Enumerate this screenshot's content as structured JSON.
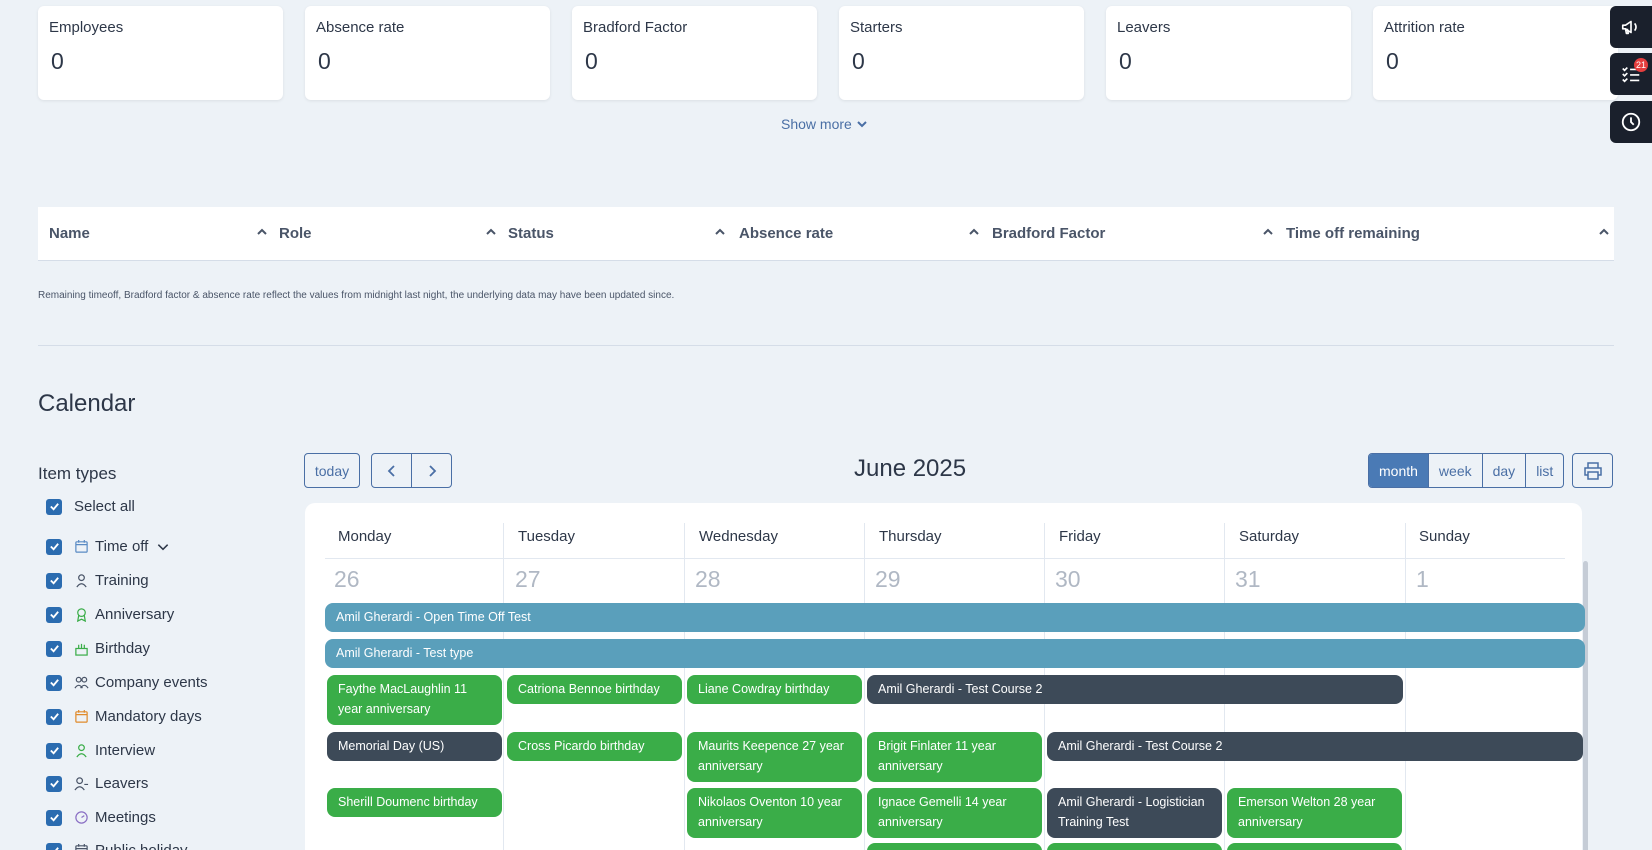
{
  "stats": [
    {
      "label": "Employees",
      "value": "0"
    },
    {
      "label": "Absence rate",
      "value": "0"
    },
    {
      "label": "Bradford Factor",
      "value": "0"
    },
    {
      "label": "Starters",
      "value": "0"
    },
    {
      "label": "Leavers",
      "value": "0"
    },
    {
      "label": "Attrition rate",
      "value": "0"
    }
  ],
  "show_more": "Show more",
  "side_panel": {
    "tasks_badge": "21",
    "icons": [
      "megaphone-icon",
      "task-list-icon",
      "clock-icon"
    ]
  },
  "table": {
    "columns": [
      "Name",
      "Role",
      "Status",
      "Absence rate",
      "Bradford Factor",
      "Time off remaining"
    ]
  },
  "note": "Remaining timeoff, Bradford factor & absence rate reflect the values from midnight last night, the underlying data may have been updated since.",
  "calendar": {
    "title": "Calendar",
    "month_label": "June 2025",
    "today_label": "today",
    "views": [
      "month",
      "week",
      "day",
      "list"
    ],
    "active_view": "month",
    "days": [
      "Monday",
      "Tuesday",
      "Wednesday",
      "Thursday",
      "Friday",
      "Saturday",
      "Sunday"
    ],
    "dates": [
      "26",
      "27",
      "28",
      "29",
      "30",
      "31",
      "1"
    ],
    "events": [
      {
        "text": "Amil Gherardi - Open Time Off Test",
        "color": "#5a9fbb"
      },
      {
        "text": "Amil Gherardi - Test type",
        "color": "#5a9fbb"
      },
      {
        "text": "Faythe MacLaughlin 11 year anniversary",
        "color": "#3aad48"
      },
      {
        "text": "Catriona Bennoe birthday",
        "color": "#3aad48"
      },
      {
        "text": "Liane Cowdray birthday",
        "color": "#3aad48"
      },
      {
        "text": "Amil Gherardi - Test Course 2",
        "color": "#3d4a58"
      },
      {
        "text": "Memorial Day (US)",
        "color": "#3d4a58"
      },
      {
        "text": "Cross Picardo birthday",
        "color": "#3aad48"
      },
      {
        "text": "Maurits Keepence 27 year anniversary",
        "color": "#3aad48"
      },
      {
        "text": "Brigit Finlater 11 year anniversary",
        "color": "#3aad48"
      },
      {
        "text": "Amil Gherardi - Test Course 2",
        "color": "#3d4a58"
      },
      {
        "text": "Sherill Doumenc birthday",
        "color": "#3aad48"
      },
      {
        "text": "Nikolaos Oventon 10 year anniversary",
        "color": "#3aad48"
      },
      {
        "text": "Ignace Gemelli 14 year anniversary",
        "color": "#3aad48"
      },
      {
        "text": "Amil Gherardi - Logistician Training Test",
        "color": "#3d4a58"
      },
      {
        "text": "Emerson Welton 28 year anniversary",
        "color": "#3aad48"
      }
    ]
  },
  "filters": {
    "title": "Item types",
    "items": [
      {
        "label": "Select all",
        "icon": "",
        "checked": true
      },
      {
        "label": "Time off",
        "icon": "calendar-icon",
        "checked": true
      },
      {
        "label": "Training",
        "icon": "training-icon",
        "checked": true
      },
      {
        "label": "Anniversary",
        "icon": "award-icon",
        "checked": true
      },
      {
        "label": "Birthday",
        "icon": "cake-icon",
        "checked": true
      },
      {
        "label": "Company events",
        "icon": "people-icon",
        "checked": true
      },
      {
        "label": "Mandatory days",
        "icon": "calendar-icon",
        "checked": true
      },
      {
        "label": "Interview",
        "icon": "interview-icon",
        "checked": true
      },
      {
        "label": "Leavers",
        "icon": "user-leave-icon",
        "checked": true
      },
      {
        "label": "Meetings",
        "icon": "meeting-icon",
        "checked": true
      },
      {
        "label": "Public holiday",
        "icon": "calendar-icon",
        "checked": true
      }
    ]
  }
}
